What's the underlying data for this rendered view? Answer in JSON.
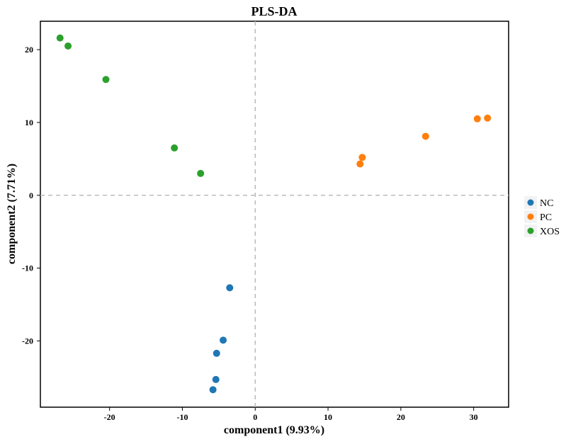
{
  "chart_data": {
    "type": "scatter",
    "title": "PLS-DA",
    "xlabel": "component1 (9.93%)",
    "ylabel": "component2 (7.71%)",
    "xlim": [
      -29.5,
      34.8
    ],
    "ylim": [
      -29.1,
      23.9
    ],
    "xticks": [
      -20,
      -10,
      0,
      10,
      20,
      30
    ],
    "yticks": [
      -20,
      -10,
      0,
      10,
      20
    ],
    "reference_lines": {
      "x": 0,
      "y": 0
    },
    "legend_position": "right",
    "series": [
      {
        "name": "NC",
        "color": "#1f77b4",
        "points": [
          [
            -3.5,
            -12.7
          ],
          [
            -4.4,
            -19.9
          ],
          [
            -5.3,
            -21.7
          ],
          [
            -5.4,
            -25.3
          ],
          [
            -5.8,
            -26.7
          ]
        ]
      },
      {
        "name": "PC",
        "color": "#ff7f0e",
        "points": [
          [
            14.4,
            4.3
          ],
          [
            14.7,
            5.2
          ],
          [
            23.4,
            8.1
          ],
          [
            30.5,
            10.5
          ],
          [
            31.9,
            10.6
          ]
        ]
      },
      {
        "name": "XOS",
        "color": "#2ca02c",
        "points": [
          [
            -26.8,
            21.6
          ],
          [
            -25.7,
            20.5
          ],
          [
            -20.5,
            15.9
          ],
          [
            -11.1,
            6.5
          ],
          [
            -7.5,
            3.0
          ]
        ]
      }
    ]
  }
}
